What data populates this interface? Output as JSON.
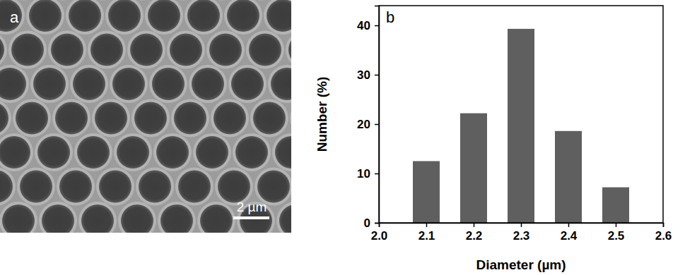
{
  "image_panel": {
    "label": "a",
    "scale_bar_label": "2 µm"
  },
  "chart_data": {
    "type": "bar",
    "annotations": [
      "b"
    ],
    "x_label": "Diameter (µm)",
    "y_label": "Number (%)",
    "x": [
      2.1,
      2.2,
      2.3,
      2.4,
      2.5
    ],
    "values": [
      12.5,
      22.2,
      39.3,
      18.6,
      7.2
    ],
    "color": "#5f5f5f",
    "xlim": [
      2.0,
      2.6
    ],
    "xticks": [
      {
        "value": 2,
        "label": "2.0"
      },
      2.1,
      2.2,
      2.3,
      2.4,
      2.5,
      2.6
    ],
    "ylim": [
      0,
      44
    ],
    "yticks": [
      0,
      10,
      20,
      30,
      40
    ],
    "grid": false
  }
}
